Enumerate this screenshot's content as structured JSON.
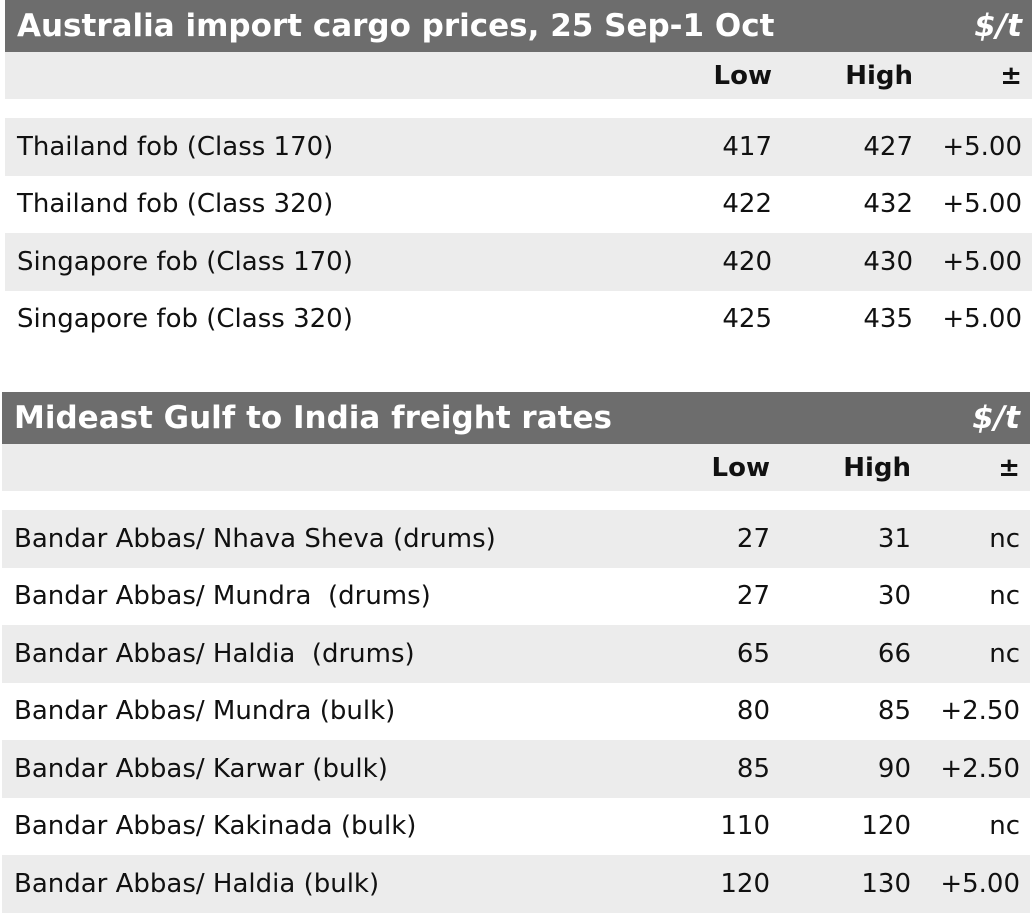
{
  "tables": [
    {
      "title": "Australia import cargo prices, 25 Sep-1 Oct",
      "unit": "$/t",
      "headers": {
        "low": "Low",
        "high": "High",
        "chg": "±"
      },
      "rows": [
        {
          "label": "Thailand fob (Class 170)",
          "low": "417",
          "high": "427",
          "chg": "+5.00"
        },
        {
          "label": "Thailand fob (Class 320)",
          "low": "422",
          "high": "432",
          "chg": "+5.00"
        },
        {
          "label": "Singapore fob (Class 170)",
          "low": "420",
          "high": "430",
          "chg": "+5.00"
        },
        {
          "label": "Singapore fob (Class 320)",
          "low": "425",
          "high": "435",
          "chg": "+5.00"
        }
      ]
    },
    {
      "title": "Mideast Gulf to India freight rates",
      "unit": "$/t",
      "headers": {
        "low": "Low",
        "high": "High",
        "chg": "±"
      },
      "rows": [
        {
          "label": "Bandar Abbas/ Nhava Sheva (drums)",
          "low": "27",
          "high": "31",
          "chg": "nc"
        },
        {
          "label": "Bandar Abbas/ Mundra  (drums)",
          "low": "27",
          "high": "30",
          "chg": "nc"
        },
        {
          "label": "Bandar Abbas/ Haldia  (drums)",
          "low": "65",
          "high": "66",
          "chg": "nc"
        },
        {
          "label": "Bandar Abbas/ Mundra (bulk)",
          "low": "80",
          "high": "85",
          "chg": "+2.50"
        },
        {
          "label": "Bandar Abbas/ Karwar (bulk)",
          "low": "85",
          "high": "90",
          "chg": "+2.50"
        },
        {
          "label": "Bandar Abbas/ Kakinada (bulk)",
          "low": "110",
          "high": "120",
          "chg": "nc"
        },
        {
          "label": "Bandar Abbas/ Haldia (bulk)",
          "low": "120",
          "high": "130",
          "chg": "+5.00"
        }
      ]
    }
  ]
}
